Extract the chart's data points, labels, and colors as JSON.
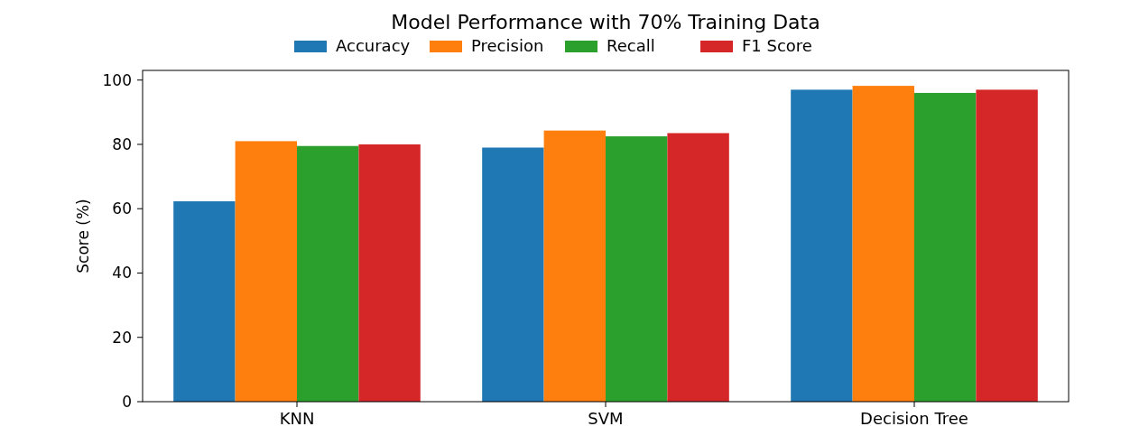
{
  "chart_data": {
    "type": "bar",
    "title": "Model Performance with 70% Training Data",
    "ylabel": "Score (%)",
    "categories": [
      "KNN",
      "SVM",
      "Decision Tree"
    ],
    "series": [
      {
        "name": "Accuracy",
        "color": "#1f77b4",
        "values": [
          62.3,
          79,
          97
        ]
      },
      {
        "name": "Precision",
        "color": "#ff7f0e",
        "values": [
          81,
          84.3,
          98.2
        ]
      },
      {
        "name": "Recall",
        "color": "#2ca02c",
        "values": [
          79.5,
          82.5,
          96
        ]
      },
      {
        "name": "F1 Score",
        "color": "#d62728",
        "values": [
          80,
          83.5,
          97
        ]
      }
    ],
    "ylim": [
      0,
      103
    ],
    "yticks": [
      0,
      20,
      40,
      60,
      80,
      100
    ],
    "legend": "top",
    "grid": false
  }
}
